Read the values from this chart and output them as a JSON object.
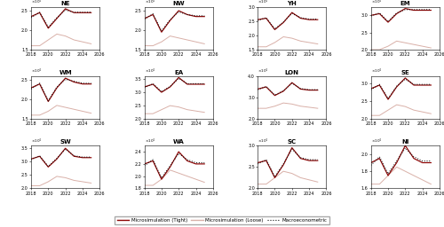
{
  "regions": [
    "NE",
    "NW",
    "YH",
    "EM",
    "WM",
    "EA",
    "LON",
    "SE",
    "SW",
    "WA",
    "SC",
    "NI"
  ],
  "years": [
    2018,
    2019,
    2020,
    2021,
    2022,
    2023,
    2024,
    2025
  ],
  "tight": {
    "NE": [
      23500,
      24500,
      20500,
      23000,
      25500,
      24500,
      24500,
      24500
    ],
    "NW": [
      23000,
      24000,
      19500,
      22500,
      25000,
      24000,
      23500,
      23500
    ],
    "YH": [
      25500,
      26000,
      22000,
      24500,
      28000,
      26000,
      25500,
      25500
    ],
    "EM": [
      30000,
      30500,
      28000,
      30500,
      32000,
      31500,
      31500,
      31500
    ],
    "WM": [
      23000,
      24000,
      19500,
      23000,
      25500,
      24500,
      24000,
      24000
    ],
    "EA": [
      32000,
      33000,
      30000,
      32000,
      35500,
      33000,
      33000,
      33000
    ],
    "LON": [
      34000,
      35000,
      31000,
      33000,
      37000,
      34000,
      33500,
      33500
    ],
    "SE": [
      28500,
      29500,
      25500,
      29000,
      31500,
      29500,
      29500,
      29500
    ],
    "SW": [
      31000,
      32000,
      28000,
      31000,
      35000,
      32000,
      31500,
      31500
    ],
    "WA": [
      22000,
      22500,
      19500,
      21500,
      24000,
      22500,
      22000,
      22000
    ],
    "SC": [
      26000,
      26500,
      22500,
      25500,
      29500,
      27000,
      26500,
      26500
    ],
    "NI": [
      19000,
      19500,
      17500,
      19000,
      21000,
      19500,
      19000,
      19000
    ]
  },
  "loose": {
    "NE": [
      16000,
      16000,
      17500,
      19000,
      18500,
      17500,
      17000,
      16500
    ],
    "NW": [
      16000,
      16000,
      17000,
      18500,
      18000,
      17500,
      17000,
      16500
    ],
    "YH": [
      16000,
      16000,
      17500,
      19500,
      19000,
      18000,
      17500,
      17000
    ],
    "EM": [
      20000,
      20000,
      21000,
      22500,
      22000,
      21500,
      21000,
      20500
    ],
    "WM": [
      16000,
      16000,
      17000,
      18500,
      18000,
      17500,
      17000,
      16500
    ],
    "EA": [
      22000,
      22000,
      23500,
      25000,
      24500,
      23500,
      23000,
      22500
    ],
    "LON": [
      25000,
      25000,
      26000,
      27500,
      27000,
      26000,
      25500,
      25000
    ],
    "SE": [
      21000,
      21000,
      22500,
      24000,
      23500,
      22500,
      22000,
      21500
    ],
    "SW": [
      21000,
      21000,
      22500,
      24500,
      24000,
      23000,
      22500,
      22000
    ],
    "WA": [
      18500,
      18500,
      19500,
      21000,
      20500,
      20000,
      19500,
      19000
    ],
    "SC": [
      21000,
      21000,
      22500,
      24000,
      23500,
      22500,
      22000,
      21500
    ],
    "NI": [
      16500,
      16500,
      17500,
      18500,
      18000,
      17500,
      17000,
      16500
    ]
  },
  "macro": {
    "NE": [
      23200,
      24600,
      20800,
      23200,
      25200,
      24600,
      24600,
      24600
    ],
    "NW": [
      22800,
      24200,
      19800,
      22700,
      24700,
      24000,
      23700,
      23700
    ],
    "YH": [
      25200,
      26200,
      22200,
      24700,
      27700,
      26200,
      25700,
      25700
    ],
    "EM": [
      29800,
      30700,
      28200,
      30700,
      31700,
      31700,
      31700,
      31700
    ],
    "WM": [
      22700,
      24200,
      19700,
      23200,
      25200,
      24700,
      24200,
      24200
    ],
    "EA": [
      31700,
      33200,
      30200,
      32200,
      35200,
      33200,
      33200,
      33200
    ],
    "LON": [
      33700,
      35200,
      31200,
      33200,
      36700,
      34200,
      33700,
      33700
    ],
    "SE": [
      28200,
      29700,
      25700,
      29200,
      31200,
      29700,
      29700,
      29700
    ],
    "SW": [
      30700,
      32200,
      28200,
      31200,
      34700,
      32200,
      31700,
      31700
    ],
    "WA": [
      21700,
      22700,
      19700,
      21700,
      23700,
      22700,
      22200,
      22200
    ],
    "SC": [
      25700,
      26700,
      22700,
      25700,
      29200,
      27200,
      26700,
      26700
    ],
    "NI": [
      18700,
      19700,
      17700,
      19200,
      20700,
      19700,
      19200,
      19200
    ]
  },
  "ylim": {
    "NE": [
      15000.0,
      26000.0
    ],
    "NW": [
      15000.0,
      26000.0
    ],
    "YH": [
      15000.0,
      30000.0
    ],
    "EM": [
      20000.0,
      32500.0
    ],
    "WM": [
      15000.0,
      26000.0
    ],
    "EA": [
      20000.0,
      36000.0
    ],
    "LON": [
      20000.0,
      40000.0
    ],
    "SE": [
      20000.0,
      32000.0
    ],
    "SW": [
      20000.0,
      36000.0
    ],
    "WA": [
      18000.0,
      25000.0
    ],
    "SC": [
      20000.0,
      30000.0
    ],
    "NI": [
      16000.0,
      21000.0
    ]
  },
  "yticks": {
    "NE": [
      1.5,
      2.0,
      2.5
    ],
    "NW": [
      1.5,
      2.0,
      2.5
    ],
    "YH": [
      1.5,
      2.0,
      2.5,
      3.0
    ],
    "EM": [
      2.0,
      2.5,
      3.0
    ],
    "WM": [
      1.5,
      2.0,
      2.5
    ],
    "EA": [
      2.0,
      2.5,
      3.0,
      3.5
    ],
    "LON": [
      2.0,
      3.0,
      4.0
    ],
    "SE": [
      2.0,
      2.5,
      3.0
    ],
    "SW": [
      2.0,
      2.5,
      3.0,
      3.5
    ],
    "WA": [
      1.8,
      2.0,
      2.2,
      2.4
    ],
    "SC": [
      2.0,
      2.5,
      3.0
    ],
    "NI": [
      1.6,
      1.8,
      2.0
    ]
  },
  "color_tight": "#8B0000",
  "color_loose": "#D9B0A8",
  "color_macro": "#111111",
  "legend_labels": [
    "Microsimulation (Tight)",
    "Microsimulation (Loose)",
    "Macroeconometric"
  ]
}
